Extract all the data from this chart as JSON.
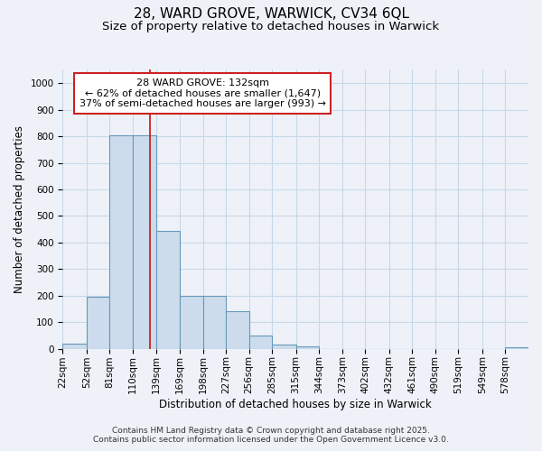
{
  "title": "28, WARD GROVE, WARWICK, CV34 6QL",
  "subtitle": "Size of property relative to detached houses in Warwick",
  "xlabel": "Distribution of detached houses by size in Warwick",
  "ylabel": "Number of detached properties",
  "annotation_title": "28 WARD GROVE: 132sqm",
  "annotation_line1": "← 62% of detached houses are smaller (1,647)",
  "annotation_line2": "37% of semi-detached houses are larger (993) →",
  "bin_edges": [
    22,
    52,
    81,
    110,
    139,
    169,
    198,
    227,
    256,
    285,
    315,
    344,
    373,
    402,
    432,
    461,
    490,
    519,
    549,
    578,
    607
  ],
  "bar_heights": [
    20,
    195,
    805,
    805,
    445,
    200,
    200,
    140,
    50,
    15,
    10,
    0,
    0,
    0,
    0,
    0,
    0,
    0,
    0,
    5
  ],
  "bar_color": "#cddcec",
  "bar_edge_color": "#6699bb",
  "vline_color": "#cc2222",
  "vline_x": 132,
  "ylim": [
    0,
    1050
  ],
  "yticks": [
    0,
    100,
    200,
    300,
    400,
    500,
    600,
    700,
    800,
    900,
    1000
  ],
  "grid_color": "#c8d8e8",
  "background_color": "#eef2f8",
  "plot_bg_color": "#eef2f8",
  "annotation_box_color": "#ffffff",
  "annotation_border_color": "#cc2222",
  "footer_line1": "Contains HM Land Registry data © Crown copyright and database right 2025.",
  "footer_line2": "Contains public sector information licensed under the Open Government Licence v3.0.",
  "title_fontsize": 11,
  "subtitle_fontsize": 9.5,
  "axis_label_fontsize": 8.5,
  "tick_fontsize": 7.5,
  "annotation_fontsize": 8,
  "footer_fontsize": 6.5
}
